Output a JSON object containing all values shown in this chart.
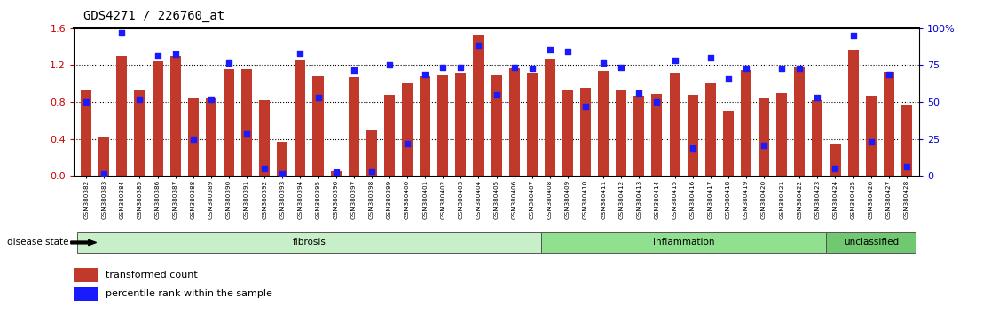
{
  "title": "GDS4271 / 226760_at",
  "samples": [
    "GSM380382",
    "GSM380383",
    "GSM380384",
    "GSM380385",
    "GSM380386",
    "GSM380387",
    "GSM380388",
    "GSM380389",
    "GSM380390",
    "GSM380391",
    "GSM380392",
    "GSM380393",
    "GSM380394",
    "GSM380395",
    "GSM380396",
    "GSM380397",
    "GSM380398",
    "GSM380399",
    "GSM380400",
    "GSM380401",
    "GSM380402",
    "GSM380403",
    "GSM380404",
    "GSM380405",
    "GSM380406",
    "GSM380407",
    "GSM380408",
    "GSM380409",
    "GSM380410",
    "GSM380411",
    "GSM380412",
    "GSM380413",
    "GSM380414",
    "GSM380415",
    "GSM380416",
    "GSM380417",
    "GSM380418",
    "GSM380419",
    "GSM380420",
    "GSM380421",
    "GSM380422",
    "GSM380423",
    "GSM380424",
    "GSM380425",
    "GSM380426",
    "GSM380427",
    "GSM380428"
  ],
  "transformed_count": [
    0.93,
    0.43,
    1.3,
    0.93,
    1.24,
    1.3,
    0.85,
    0.85,
    1.16,
    1.16,
    0.82,
    0.37,
    1.25,
    1.08,
    0.05,
    1.07,
    0.5,
    0.88,
    1.0,
    1.08,
    1.1,
    1.12,
    1.53,
    1.1,
    1.17,
    1.12,
    1.27,
    0.93,
    0.95,
    1.14,
    0.93,
    0.87,
    0.89,
    1.12,
    0.88,
    1.0,
    0.7,
    1.15,
    0.85,
    0.9,
    1.18,
    0.82,
    0.35,
    1.37,
    0.87,
    1.13,
    0.77
  ],
  "percentile_rank": [
    0.8,
    0.02,
    1.55,
    0.83,
    1.3,
    1.32,
    0.4,
    0.83,
    1.22,
    0.45,
    0.08,
    0.02,
    1.33,
    0.85,
    0.04,
    1.15,
    0.05,
    1.2,
    0.35,
    1.1,
    1.18,
    1.18,
    1.42,
    0.88,
    1.18,
    1.17,
    1.37,
    1.35,
    0.75,
    1.22,
    1.18,
    0.9,
    0.8,
    1.25,
    0.3,
    1.28,
    1.05,
    1.17,
    0.33,
    1.17,
    1.17,
    0.85,
    0.08,
    1.52,
    0.37,
    1.1,
    0.1
  ],
  "groups": [
    {
      "label": "fibrosis",
      "start": 0,
      "end": 26,
      "color": "#c8f0c8"
    },
    {
      "label": "inflammation",
      "start": 26,
      "end": 42,
      "color": "#90e090"
    },
    {
      "label": "unclassified",
      "start": 42,
      "end": 47,
      "color": "#70c870"
    }
  ],
  "bar_color": "#c0392b",
  "dot_color": "#1a1aff",
  "ylim_left": [
    0,
    1.6
  ],
  "ylim_right": [
    0,
    100
  ],
  "yticks_left": [
    0,
    0.4,
    0.8,
    1.2,
    1.6
  ],
  "yticks_right": [
    0,
    25,
    50,
    75,
    100
  ],
  "ytick_labels_right": [
    "0",
    "25",
    "50",
    "75",
    "100%"
  ],
  "dotted_lines": [
    0.4,
    0.8,
    1.2
  ],
  "legend_items": [
    "transformed count",
    "percentile rank within the sample"
  ],
  "title_fontsize": 10,
  "axis_label_color_left": "#cc0000",
  "axis_label_color_right": "#0000cc",
  "disease_state_label": "disease state"
}
